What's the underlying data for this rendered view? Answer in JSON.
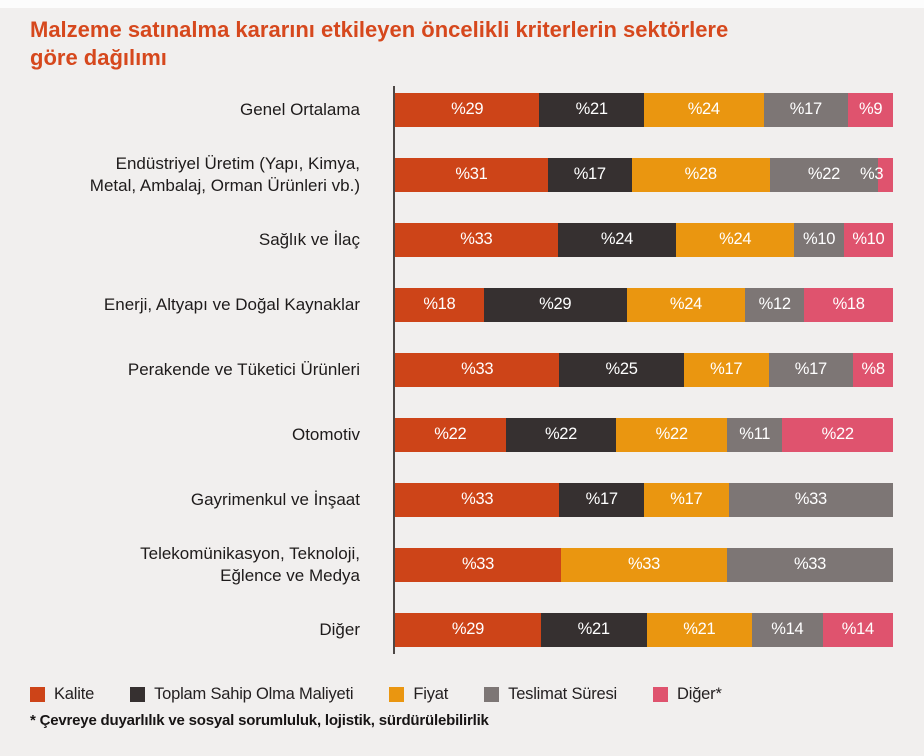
{
  "title": "Malzeme satınalma kararını etkileyen öncelikli kriterlerin sektörlere\ngöre dağılımı",
  "footnote": "* Çevreye duyarlılık ve sosyal sorumluluk, lojistik, sürdürülebilirlik",
  "colors": {
    "title": "#d6481d",
    "background": "#f1efee",
    "axis_line": "#4d4745",
    "value_label": "#ffffff"
  },
  "chart_data": {
    "type": "bar",
    "stacked": true,
    "orientation": "horizontal",
    "value_prefix": "%",
    "legend_position": "bottom",
    "grid": false,
    "legend": [
      {
        "key": "kalite",
        "label": "Kalite",
        "color": "#cd4418"
      },
      {
        "key": "maliyet",
        "label": "Toplam Sahip Olma Maliyeti",
        "color": "#363030"
      },
      {
        "key": "fiyat",
        "label": "Fiyat",
        "color": "#ea9610"
      },
      {
        "key": "teslimat",
        "label": "Teslimat Süresi",
        "color": "#7d7675"
      },
      {
        "key": "diger",
        "label": "Diğer*",
        "color": "#df536e"
      }
    ],
    "rows": [
      {
        "label": "Genel Ortalama",
        "segments": [
          {
            "key": "kalite",
            "value": 29
          },
          {
            "key": "maliyet",
            "value": 21
          },
          {
            "key": "fiyat",
            "value": 24
          },
          {
            "key": "teslimat",
            "value": 17
          },
          {
            "key": "diger",
            "value": 9
          }
        ]
      },
      {
        "label": "Endüstriyel Üretim (Yapı, Kimya,\nMetal, Ambalaj, Orman Ürünleri vb.)",
        "segments": [
          {
            "key": "kalite",
            "value": 31
          },
          {
            "key": "maliyet",
            "value": 17
          },
          {
            "key": "fiyat",
            "value": 28
          },
          {
            "key": "teslimat",
            "value": 22
          },
          {
            "key": "diger",
            "value": 3
          }
        ]
      },
      {
        "label": "Sağlık ve İlaç",
        "segments": [
          {
            "key": "kalite",
            "value": 33
          },
          {
            "key": "maliyet",
            "value": 24
          },
          {
            "key": "fiyat",
            "value": 24
          },
          {
            "key": "teslimat",
            "value": 10
          },
          {
            "key": "diger",
            "value": 10
          }
        ]
      },
      {
        "label": "Enerji, Altyapı ve Doğal Kaynaklar",
        "segments": [
          {
            "key": "kalite",
            "value": 18
          },
          {
            "key": "maliyet",
            "value": 29
          },
          {
            "key": "fiyat",
            "value": 24
          },
          {
            "key": "teslimat",
            "value": 12
          },
          {
            "key": "diger",
            "value": 18
          }
        ]
      },
      {
        "label": "Perakende ve Tüketici Ürünleri",
        "segments": [
          {
            "key": "kalite",
            "value": 33
          },
          {
            "key": "maliyet",
            "value": 25
          },
          {
            "key": "fiyat",
            "value": 17
          },
          {
            "key": "teslimat",
            "value": 17
          },
          {
            "key": "diger",
            "value": 8
          }
        ]
      },
      {
        "label": "Otomotiv",
        "segments": [
          {
            "key": "kalite",
            "value": 22
          },
          {
            "key": "maliyet",
            "value": 22
          },
          {
            "key": "fiyat",
            "value": 22
          },
          {
            "key": "teslimat",
            "value": 11
          },
          {
            "key": "diger",
            "value": 22
          }
        ]
      },
      {
        "label": "Gayrimenkul ve İnşaat",
        "segments": [
          {
            "key": "kalite",
            "value": 33
          },
          {
            "key": "maliyet",
            "value": 17
          },
          {
            "key": "fiyat",
            "value": 17
          },
          {
            "key": "teslimat",
            "value": 33
          }
        ]
      },
      {
        "label": "Telekomünikasyon, Teknoloji,\nEğlence ve Medya",
        "segments": [
          {
            "key": "kalite",
            "value": 33
          },
          {
            "key": "fiyat",
            "value": 33
          },
          {
            "key": "teslimat",
            "value": 33
          }
        ]
      },
      {
        "label": "Diğer",
        "segments": [
          {
            "key": "kalite",
            "value": 29
          },
          {
            "key": "maliyet",
            "value": 21
          },
          {
            "key": "fiyat",
            "value": 21
          },
          {
            "key": "teslimat",
            "value": 14
          },
          {
            "key": "diger",
            "value": 14
          }
        ]
      }
    ]
  }
}
